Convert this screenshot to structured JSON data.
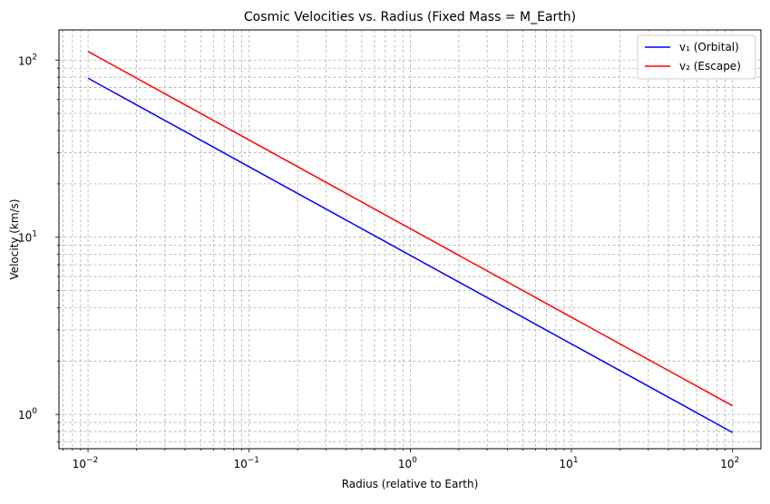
{
  "chart_data": {
    "type": "line",
    "title": "Cosmic Velocities vs. Radius (Fixed Mass = M_Earth)",
    "xlabel": "Radius (relative to Earth)",
    "ylabel": "Velocity (km/s)",
    "xscale": "log",
    "yscale": "log",
    "xlim": [
      0.0066,
      150
    ],
    "ylim": [
      0.64,
      148
    ],
    "grid": "both (major and minor, dashed)",
    "legend": "top-right",
    "x_ticks": [
      {
        "base": "10",
        "exp": "−2"
      },
      {
        "base": "10",
        "exp": "−1"
      },
      {
        "base": "10",
        "exp": "0"
      },
      {
        "base": "10",
        "exp": "1"
      },
      {
        "base": "10",
        "exp": "2"
      }
    ],
    "y_ticks": [
      {
        "base": "10",
        "exp": "0"
      },
      {
        "base": "10",
        "exp": "1"
      },
      {
        "base": "10",
        "exp": "2"
      }
    ],
    "series": [
      {
        "name": "v₁ (Orbital)",
        "color": "#0000ff",
        "x": [
          0.01,
          100
        ],
        "y": [
          79.0,
          0.79
        ]
      },
      {
        "name": "v₂ (Escape)",
        "color": "#ff0000",
        "x": [
          0.01,
          100
        ],
        "y": [
          111.8,
          1.118
        ]
      }
    ]
  }
}
